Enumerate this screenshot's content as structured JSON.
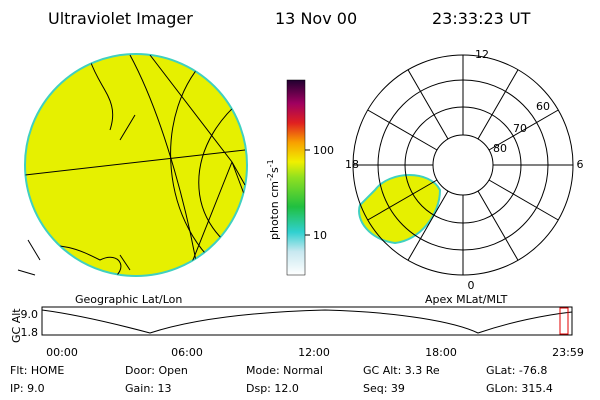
{
  "header": {
    "title": "Ultraviolet Imager",
    "date": "13 Nov 00",
    "time": "23:33:23 UT"
  },
  "colorbar": {
    "label": "photon cm",
    "exp1": "-2",
    "unit2": "s",
    "exp2": "-1",
    "ticks": [
      "100",
      "10"
    ]
  },
  "map": {
    "caption": "Geographic Lat/Lon"
  },
  "polar": {
    "caption": "Apex MLat/MLT",
    "mlt": [
      "12",
      "18",
      "6",
      "0"
    ],
    "mlat": [
      "60",
      "70",
      "80"
    ]
  },
  "altitude": {
    "ylabel": "GC Alt",
    "yticks": [
      "9.0",
      "1.8"
    ],
    "xticks": [
      "00:00",
      "06:00",
      "12:00",
      "18:00",
      "23:59"
    ]
  },
  "info": {
    "rows": [
      [
        "Flt: HOME",
        "Door: Open",
        "Mode: Normal",
        "GC Alt: 3.3 Re",
        "GLat: -76.8"
      ],
      [
        "IP: 9.0",
        "Gain: 13",
        "Dsp: 12.0",
        "Seq: 39",
        "GLon: 315.4"
      ]
    ]
  }
}
